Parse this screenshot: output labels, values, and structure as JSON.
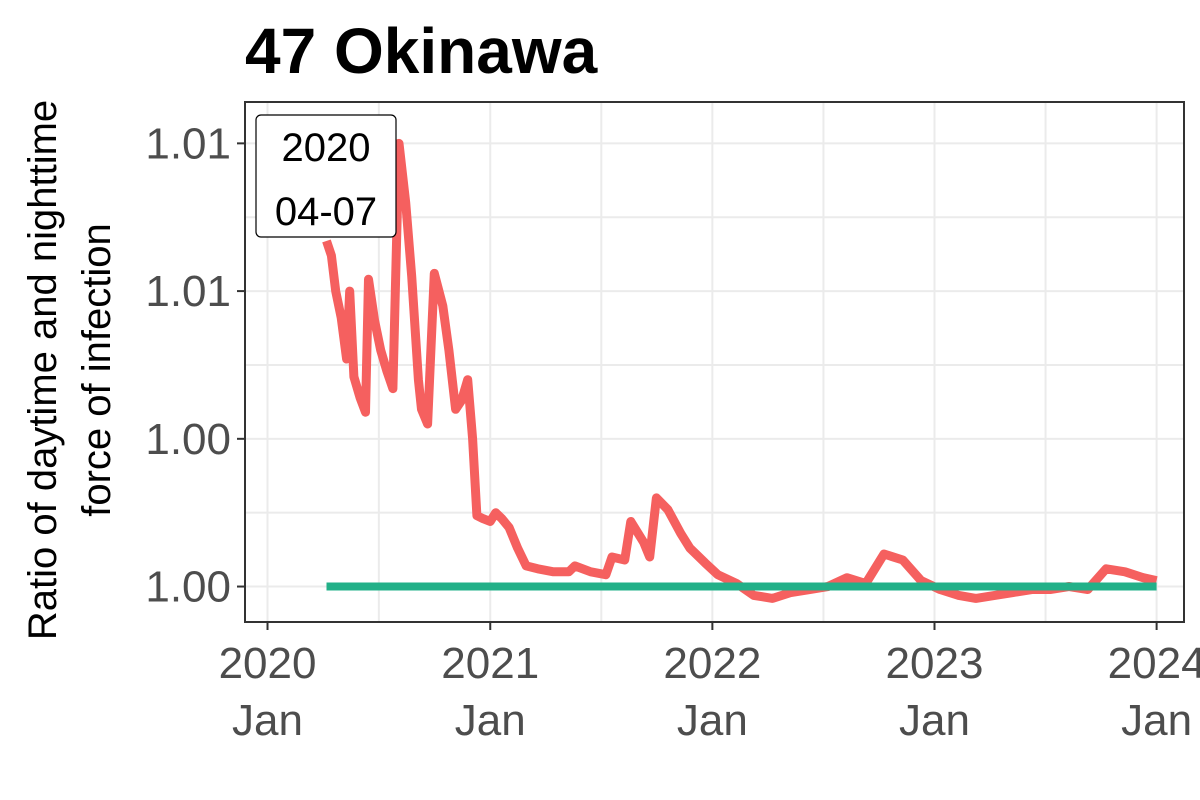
{
  "chart_data": {
    "type": "line",
    "title": "47 Okinawa",
    "ylabel_lines": [
      "Ratio of daytime and nighttime",
      "force of infection"
    ],
    "xlabel": "",
    "x_ticks": [
      {
        "date": "2020-01-01",
        "line1": "2020",
        "line2": "Jan"
      },
      {
        "date": "2021-01-01",
        "line1": "2021",
        "line2": "Jan"
      },
      {
        "date": "2022-01-01",
        "line1": "2022",
        "line2": "Jan"
      },
      {
        "date": "2023-01-01",
        "line1": "2023",
        "line2": "Jan"
      },
      {
        "date": "2024-01-01",
        "line1": "2024",
        "line2": "Jan"
      }
    ],
    "y_ticks": [
      {
        "value": 1.0,
        "label": "1.00"
      },
      {
        "value": 1.005,
        "label": "1.00"
      },
      {
        "value": 1.01,
        "label": "1.01"
      },
      {
        "value": 1.015,
        "label": "1.01"
      }
    ],
    "xlim": [
      "2019-11-25",
      "2024-02-15"
    ],
    "ylim": [
      0.9988,
      1.0164
    ],
    "grid": true,
    "annotation": {
      "line1": "2020",
      "line2": "04-07"
    },
    "colors": {
      "ratio": "#f5605f",
      "baseline": "#22b088"
    },
    "series": [
      {
        "key": "ratio",
        "points": [
          [
            "2020-04-07",
            1.0117
          ],
          [
            "2020-04-15",
            1.0112
          ],
          [
            "2020-04-22",
            1.01
          ],
          [
            "2020-05-01",
            1.0091
          ],
          [
            "2020-05-10",
            1.0077
          ],
          [
            "2020-05-15",
            1.01
          ],
          [
            "2020-05-22",
            1.0071
          ],
          [
            "2020-06-01",
            1.0064
          ],
          [
            "2020-06-10",
            1.0059
          ],
          [
            "2020-06-15",
            1.0104
          ],
          [
            "2020-06-25",
            1.009
          ],
          [
            "2020-07-05",
            1.008
          ],
          [
            "2020-07-15",
            1.0073
          ],
          [
            "2020-07-25",
            1.0067
          ],
          [
            "2020-08-04",
            1.015
          ],
          [
            "2020-08-15",
            1.013
          ],
          [
            "2020-08-25",
            1.0105
          ],
          [
            "2020-09-05",
            1.007
          ],
          [
            "2020-09-10",
            1.006
          ],
          [
            "2020-09-20",
            1.0055
          ],
          [
            "2020-10-01",
            1.0106
          ],
          [
            "2020-10-15",
            1.0095
          ],
          [
            "2020-10-25",
            1.008
          ],
          [
            "2020-11-05",
            1.006
          ],
          [
            "2020-11-15",
            1.0063
          ],
          [
            "2020-11-25",
            1.007
          ],
          [
            "2020-12-03",
            1.005
          ],
          [
            "2020-12-10",
            1.0024
          ],
          [
            "2020-12-20",
            1.0023
          ],
          [
            "2021-01-01",
            1.0022
          ],
          [
            "2021-01-10",
            1.0025
          ],
          [
            "2021-01-20",
            1.0023
          ],
          [
            "2021-02-01",
            1.002
          ],
          [
            "2021-02-15",
            1.0013
          ],
          [
            "2021-03-01",
            1.0007
          ],
          [
            "2021-03-20",
            1.0006
          ],
          [
            "2021-04-15",
            1.0005
          ],
          [
            "2021-05-10",
            1.0005
          ],
          [
            "2021-05-20",
            1.0007
          ],
          [
            "2021-06-15",
            1.0005
          ],
          [
            "2021-07-10",
            1.0004
          ],
          [
            "2021-07-20",
            1.001
          ],
          [
            "2021-08-10",
            1.0009
          ],
          [
            "2021-08-20",
            1.0022
          ],
          [
            "2021-09-10",
            1.0015
          ],
          [
            "2021-09-20",
            1.001
          ],
          [
            "2021-10-01",
            1.003
          ],
          [
            "2021-10-20",
            1.0026
          ],
          [
            "2021-11-10",
            1.0018
          ],
          [
            "2021-11-25",
            1.0013
          ],
          [
            "2021-12-20",
            1.0008
          ],
          [
            "2022-01-10",
            1.0004
          ],
          [
            "2022-02-10",
            1.0001
          ],
          [
            "2022-03-10",
            0.9997
          ],
          [
            "2022-04-10",
            0.9996
          ],
          [
            "2022-05-10",
            0.9998
          ],
          [
            "2022-06-10",
            0.9999
          ],
          [
            "2022-07-10",
            1.0
          ],
          [
            "2022-08-10",
            1.0003
          ],
          [
            "2022-09-10",
            1.0001
          ],
          [
            "2022-10-10",
            1.0011
          ],
          [
            "2022-11-10",
            1.0009
          ],
          [
            "2022-12-10",
            1.0002
          ],
          [
            "2023-01-10",
            0.9999
          ],
          [
            "2023-02-10",
            0.9997
          ],
          [
            "2023-03-10",
            0.9996
          ],
          [
            "2023-04-10",
            0.9997
          ],
          [
            "2023-05-10",
            0.9998
          ],
          [
            "2023-06-10",
            0.9999
          ],
          [
            "2023-07-10",
            0.9999
          ],
          [
            "2023-08-10",
            1.0
          ],
          [
            "2023-09-10",
            0.9999
          ],
          [
            "2023-10-10",
            1.0006
          ],
          [
            "2023-11-10",
            1.0005
          ],
          [
            "2023-12-10",
            1.0003
          ],
          [
            "2024-01-01",
            1.0002
          ]
        ]
      },
      {
        "key": "baseline",
        "points": [
          [
            "2020-04-07",
            1.0
          ],
          [
            "2024-01-01",
            1.0
          ]
        ]
      }
    ]
  }
}
